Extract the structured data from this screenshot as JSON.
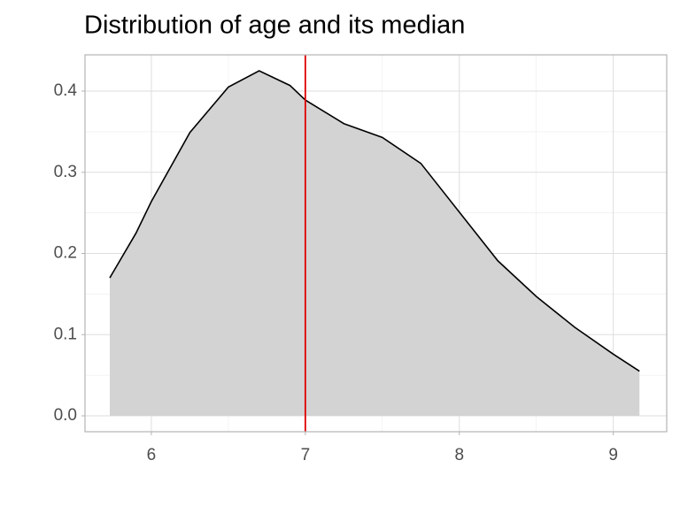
{
  "chart_data": {
    "type": "area",
    "title": "Distribution of age and its median",
    "x": [
      5.73,
      5.9,
      6.0,
      6.25,
      6.5,
      6.7,
      6.9,
      7.0,
      7.25,
      7.5,
      7.75,
      8.0,
      8.25,
      8.5,
      8.75,
      9.0,
      9.17
    ],
    "values": [
      0.17,
      0.225,
      0.264,
      0.349,
      0.405,
      0.425,
      0.407,
      0.389,
      0.36,
      0.343,
      0.311,
      0.251,
      0.191,
      0.147,
      0.109,
      0.076,
      0.055
    ],
    "color": "#d3d3d3",
    "line_color": "#000000",
    "vline": 7,
    "vline_color": "#e00000",
    "xlim": [
      5.569,
      9.347
    ],
    "ylim": [
      -0.0196,
      0.4447
    ],
    "xticks": [
      6,
      7,
      8,
      9
    ],
    "yticks": [
      {
        "value": 0,
        "label": "0.0"
      },
      0.1,
      0.2,
      0.3,
      0.4
    ],
    "grid": true,
    "minor_grid": true
  }
}
